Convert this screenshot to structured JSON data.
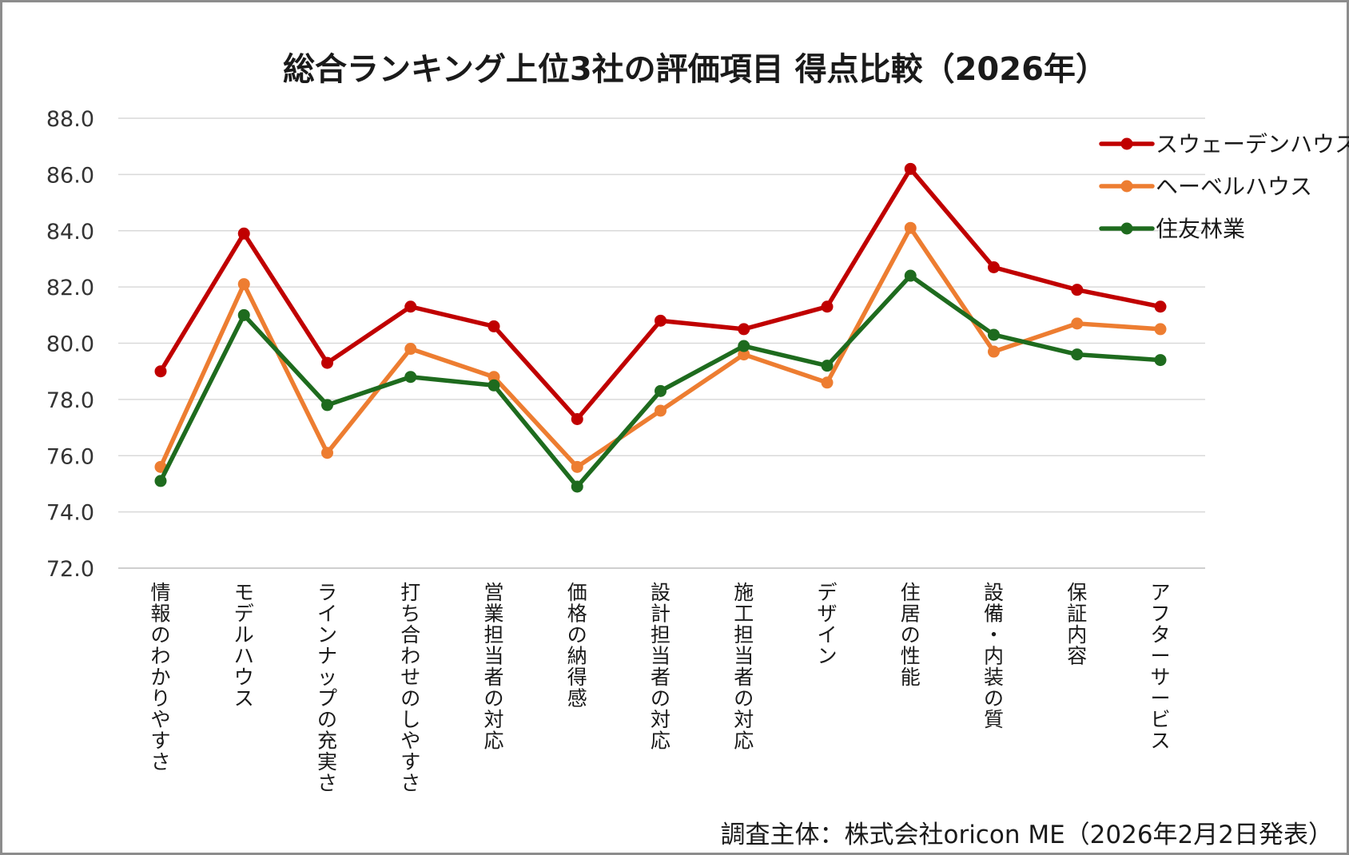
{
  "chart_data": {
    "type": "line",
    "title": "総合ランキング上位3社の評価項目 得点比較（2026年）",
    "categories": [
      "情報のわかりやすさ",
      "モデルハウス",
      "ラインナップの充実さ",
      "打ち合わせのしやすさ",
      "営業担当者の対応",
      "価格の納得感",
      "設計担当者の対応",
      "施工担当者の対応",
      "デザイン",
      "住居の性能",
      "設備・内装の質",
      "保証内容",
      "アフターサービス"
    ],
    "series": [
      {
        "name": "スウェーデンハウス",
        "color": "#c00000",
        "values": [
          79.0,
          83.9,
          79.3,
          81.3,
          80.6,
          77.3,
          80.8,
          80.5,
          81.3,
          86.2,
          82.7,
          81.9,
          81.3
        ]
      },
      {
        "name": "ヘーベルハウス",
        "color": "#ed7d31",
        "values": [
          75.6,
          82.1,
          76.1,
          79.8,
          78.8,
          75.6,
          77.6,
          79.6,
          78.6,
          84.1,
          79.7,
          80.7,
          80.5
        ]
      },
      {
        "name": "住友林業",
        "color": "#1e6b1e",
        "values": [
          75.1,
          81.0,
          77.8,
          78.8,
          78.5,
          74.9,
          78.3,
          79.9,
          79.2,
          82.4,
          80.3,
          79.6,
          79.4
        ]
      }
    ],
    "ylim": [
      72.0,
      88.0
    ],
    "yticks": [
      "72.0",
      "74.0",
      "76.0",
      "78.0",
      "80.0",
      "82.0",
      "84.0",
      "86.0",
      "88.0"
    ],
    "grid": true,
    "legend": "top-right",
    "category_label_orientation": "vertical"
  },
  "footer": {
    "source": "調査主体：株式会社oricon ME（2026年2月2日発表）"
  }
}
